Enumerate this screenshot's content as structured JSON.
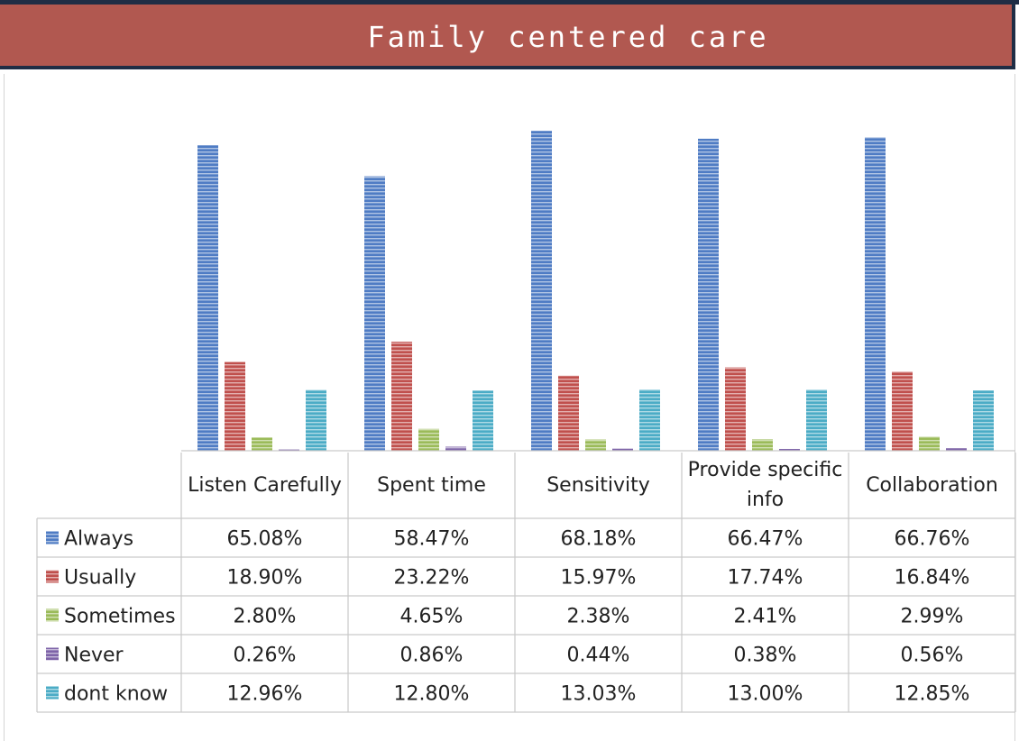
{
  "title": "Family centered care",
  "chart_data": {
    "type": "bar",
    "title": "Family centered care",
    "categories": [
      "Listen Carefully",
      "Spent time",
      "Sensitivity",
      "Provide specific info",
      "Collaboration"
    ],
    "series": [
      {
        "name": "Always",
        "color": "#4f7cc4",
        "values": [
          65.08,
          58.47,
          68.18,
          66.47,
          66.76
        ],
        "labels": [
          "65.08%",
          "58.47%",
          "68.18%",
          "66.47%",
          "66.76%"
        ]
      },
      {
        "name": "Usually",
        "color": "#c0504d",
        "values": [
          18.9,
          23.22,
          15.97,
          17.74,
          16.84
        ],
        "labels": [
          "18.90%",
          "23.22%",
          "15.97%",
          "17.74%",
          "16.84%"
        ]
      },
      {
        "name": "Sometimes",
        "color": "#9bbb59",
        "values": [
          2.8,
          4.65,
          2.38,
          2.41,
          2.99
        ],
        "labels": [
          "2.80%",
          "4.65%",
          "2.38%",
          "2.41%",
          "2.99%"
        ]
      },
      {
        "name": "Never",
        "color": "#7e63a8",
        "values": [
          0.26,
          0.86,
          0.44,
          0.38,
          0.56
        ],
        "labels": [
          "0.26%",
          "0.86%",
          "0.44%",
          "0.38%",
          "0.56%"
        ]
      },
      {
        "name": "dont know",
        "color": "#4bacc6",
        "values": [
          12.96,
          12.8,
          13.03,
          13.0,
          12.85
        ],
        "labels": [
          "12.96%",
          "12.80%",
          "13.03%",
          "13.00%",
          "12.85%"
        ]
      }
    ],
    "ylim": [
      0,
      68.18
    ],
    "grid": false,
    "legend": "data-table-left"
  }
}
